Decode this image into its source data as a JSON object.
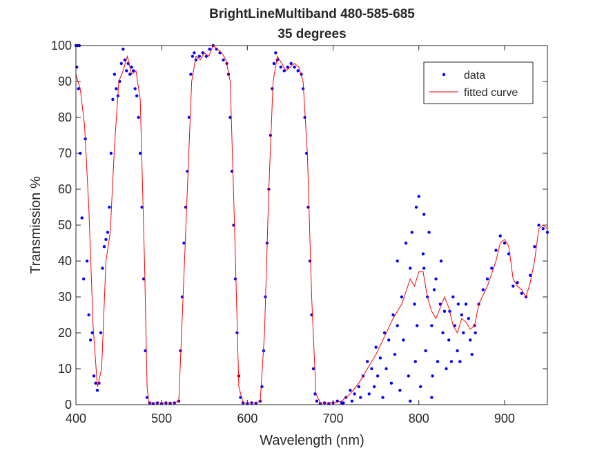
{
  "chart_data": {
    "type": "scatter",
    "title": "BrightLineMultiband 480-585-685",
    "subtitle": "35 degrees",
    "x_label": "Wavelength (nm)",
    "y_label": "Transmission %",
    "xlim": [
      400,
      950
    ],
    "xticks": [
      400,
      500,
      600,
      700,
      800,
      900
    ],
    "ylim": [
      0,
      100
    ],
    "yticks": [
      0,
      10,
      20,
      30,
      40,
      50,
      60,
      70,
      80,
      90,
      100
    ],
    "grid": false,
    "legend": "top-right",
    "series": [
      {
        "name": "data",
        "style": "markers",
        "color": "#0000ff",
        "x": [
          400,
          401,
          402,
          403,
          404,
          405,
          407,
          409,
          411,
          413,
          415,
          417,
          419,
          421,
          423,
          425,
          427,
          429,
          431,
          433,
          435,
          437,
          439,
          441,
          443,
          445,
          447,
          449,
          451,
          453,
          455,
          457,
          459,
          461,
          463,
          465,
          467,
          469,
          471,
          473,
          475,
          477,
          479,
          481,
          483,
          486,
          490,
          495,
          500,
          505,
          510,
          515,
          520,
          522,
          524,
          526,
          528,
          530,
          532,
          534,
          536,
          538,
          540,
          544,
          548,
          552,
          556,
          560,
          564,
          568,
          572,
          576,
          578,
          580,
          582,
          584,
          586,
          588,
          590,
          592,
          595,
          600,
          605,
          610,
          615,
          617,
          619,
          621,
          623,
          625,
          627,
          629,
          631,
          633,
          635,
          639,
          643,
          647,
          651,
          655,
          659,
          663,
          665,
          667,
          669,
          671,
          673,
          675,
          677,
          679,
          681,
          685,
          690,
          695,
          700,
          705,
          710,
          715,
          720,
          725,
          730,
          735,
          740,
          745,
          750,
          755,
          760,
          765,
          770,
          775,
          780,
          785,
          790,
          795,
          800,
          805,
          810,
          815,
          820,
          825,
          830,
          835,
          840,
          845,
          850,
          855,
          860,
          865,
          870,
          875,
          880,
          885,
          890,
          895,
          900,
          905,
          910,
          915,
          920,
          925,
          930,
          935,
          940,
          945,
          950,
          712,
          722,
          732,
          742,
          748,
          752,
          758,
          762,
          768,
          772,
          778,
          782,
          788,
          792,
          796,
          798,
          802,
          806,
          808,
          812,
          816,
          818,
          822,
          826,
          828,
          832,
          836,
          838,
          842,
          846,
          848,
          852,
          858,
          862,
          866,
          806,
          797,
          815,
          790,
          775
        ],
        "values": [
          100,
          94,
          100,
          88,
          100,
          70,
          52,
          35,
          74,
          40,
          25,
          18,
          20,
          8,
          6,
          4,
          6,
          20,
          38,
          44,
          46,
          48,
          55,
          70,
          85,
          92,
          88,
          86,
          90,
          95,
          99,
          96,
          93,
          95,
          92,
          94,
          93,
          88,
          86,
          80,
          70,
          55,
          35,
          15,
          2,
          0.5,
          0.3,
          0.5,
          0.3,
          0.5,
          0.4,
          0.5,
          1,
          15,
          30,
          45,
          55,
          65,
          80,
          92,
          97,
          98,
          96,
          97,
          98,
          97,
          99,
          100,
          99,
          98,
          96,
          95,
          92,
          80,
          65,
          50,
          35,
          20,
          8,
          2,
          0.5,
          0.3,
          0.5,
          0.4,
          1,
          5,
          15,
          30,
          45,
          60,
          75,
          88,
          95,
          98,
          96,
          94,
          93,
          94,
          95,
          94,
          93,
          92,
          88,
          80,
          70,
          55,
          40,
          25,
          10,
          3,
          1,
          0.3,
          0.5,
          0.3,
          0.5,
          1,
          0.5,
          2,
          4,
          3,
          5,
          8,
          12,
          10,
          16,
          13,
          20,
          18,
          25,
          22,
          30,
          45,
          38,
          28,
          58,
          42,
          30,
          22,
          35,
          28,
          26,
          18,
          30,
          15,
          25,
          28,
          18,
          22,
          28,
          32,
          35,
          38,
          43,
          47,
          45,
          42,
          33,
          34,
          31,
          30,
          36,
          44,
          50,
          49,
          48,
          0.5,
          1,
          2,
          3,
          5,
          8,
          2,
          10,
          6,
          14,
          4,
          18,
          8,
          48,
          12,
          22,
          5,
          38,
          15,
          48,
          8,
          32,
          12,
          40,
          20,
          10,
          26,
          12,
          22,
          28,
          12,
          20,
          24,
          14,
          20,
          53,
          55,
          2,
          1,
          40
        ]
      },
      {
        "name": "fitted curve",
        "style": "line",
        "color": "#ff0000",
        "x": [
          400,
          405,
          410,
          415,
          420,
          425,
          430,
          435,
          440,
          445,
          450,
          455,
          460,
          465,
          470,
          475,
          480,
          483,
          485,
          500,
          515,
          520,
          525,
          530,
          535,
          540,
          545,
          550,
          555,
          560,
          565,
          570,
          575,
          580,
          585,
          590,
          595,
          610,
          615,
          620,
          625,
          630,
          635,
          640,
          645,
          650,
          655,
          660,
          665,
          670,
          675,
          680,
          685,
          700,
          710,
          720,
          730,
          740,
          750,
          760,
          770,
          780,
          790,
          795,
          800,
          805,
          810,
          815,
          820,
          830,
          835,
          840,
          845,
          850,
          855,
          860,
          865,
          870,
          880,
          890,
          895,
          900,
          905,
          910,
          915,
          920,
          925,
          930,
          935,
          940,
          945,
          950
        ],
        "values": [
          92,
          88,
          78,
          55,
          22,
          5,
          10,
          40,
          48,
          72,
          90,
          93,
          97,
          92,
          93,
          85,
          40,
          5,
          0.5,
          0.5,
          0.5,
          1,
          30,
          60,
          90,
          97,
          96,
          98,
          97,
          100,
          99,
          98,
          96,
          90,
          50,
          5,
          0.5,
          0.5,
          1,
          20,
          60,
          90,
          97,
          95,
          93,
          94,
          95,
          94,
          90,
          70,
          30,
          3,
          0.5,
          0.5,
          1,
          3,
          6,
          10,
          14,
          19,
          24,
          28,
          35,
          33,
          37,
          37,
          30,
          26,
          24,
          30,
          27,
          22,
          20,
          24,
          23,
          21,
          22,
          28,
          33,
          40,
          45,
          46,
          44,
          35,
          33,
          32,
          30,
          34,
          40,
          49,
          50,
          49
        ]
      }
    ]
  }
}
